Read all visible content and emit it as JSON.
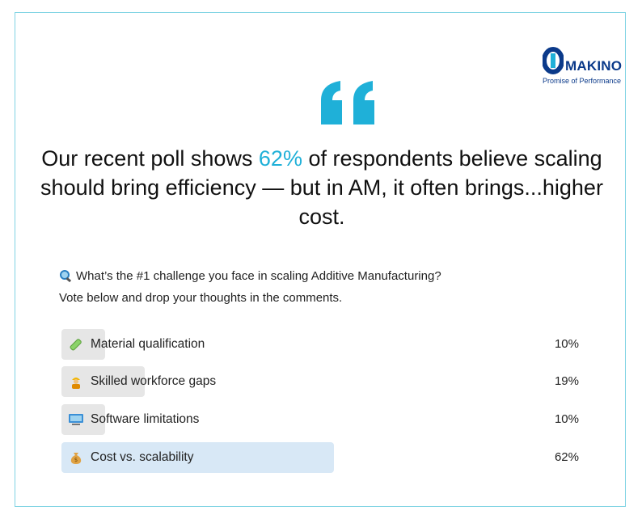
{
  "logo": {
    "name": "MAKINO",
    "tagline": "Promise of Performance"
  },
  "quote_icon": "quote-open-icon",
  "headline": {
    "part1": "Our recent poll shows ",
    "highlight": "62%",
    "part2": " of respondents believe scaling should bring efficiency —  but in AM, it often brings...higher cost."
  },
  "question": {
    "icon": "magnifier-icon",
    "line1": "What’s the #1 challenge you face in scaling Additive Manufacturing?",
    "line2": "Vote below and drop your thoughts in the comments."
  },
  "poll": {
    "options": [
      {
        "icon": "test-tube-icon",
        "label": "Material qualification",
        "percent": "10%",
        "fraction": 0.1,
        "selected": false
      },
      {
        "icon": "worker-icon",
        "label": "Skilled workforce gaps",
        "percent": "19%",
        "fraction": 0.19,
        "selected": false
      },
      {
        "icon": "computer-icon",
        "label": "Software limitations",
        "percent": "10%",
        "fraction": 0.1,
        "selected": false
      },
      {
        "icon": "money-bag-icon",
        "label": "Cost vs. scalability",
        "percent": "62%",
        "fraction": 0.62,
        "selected": true
      }
    ]
  },
  "colors": {
    "accent": "#1fb0d8",
    "border": "#7fd3e3",
    "bar": "#e6e6e6",
    "bar_selected": "#d8e8f6",
    "brand": "#0b3a8a"
  }
}
